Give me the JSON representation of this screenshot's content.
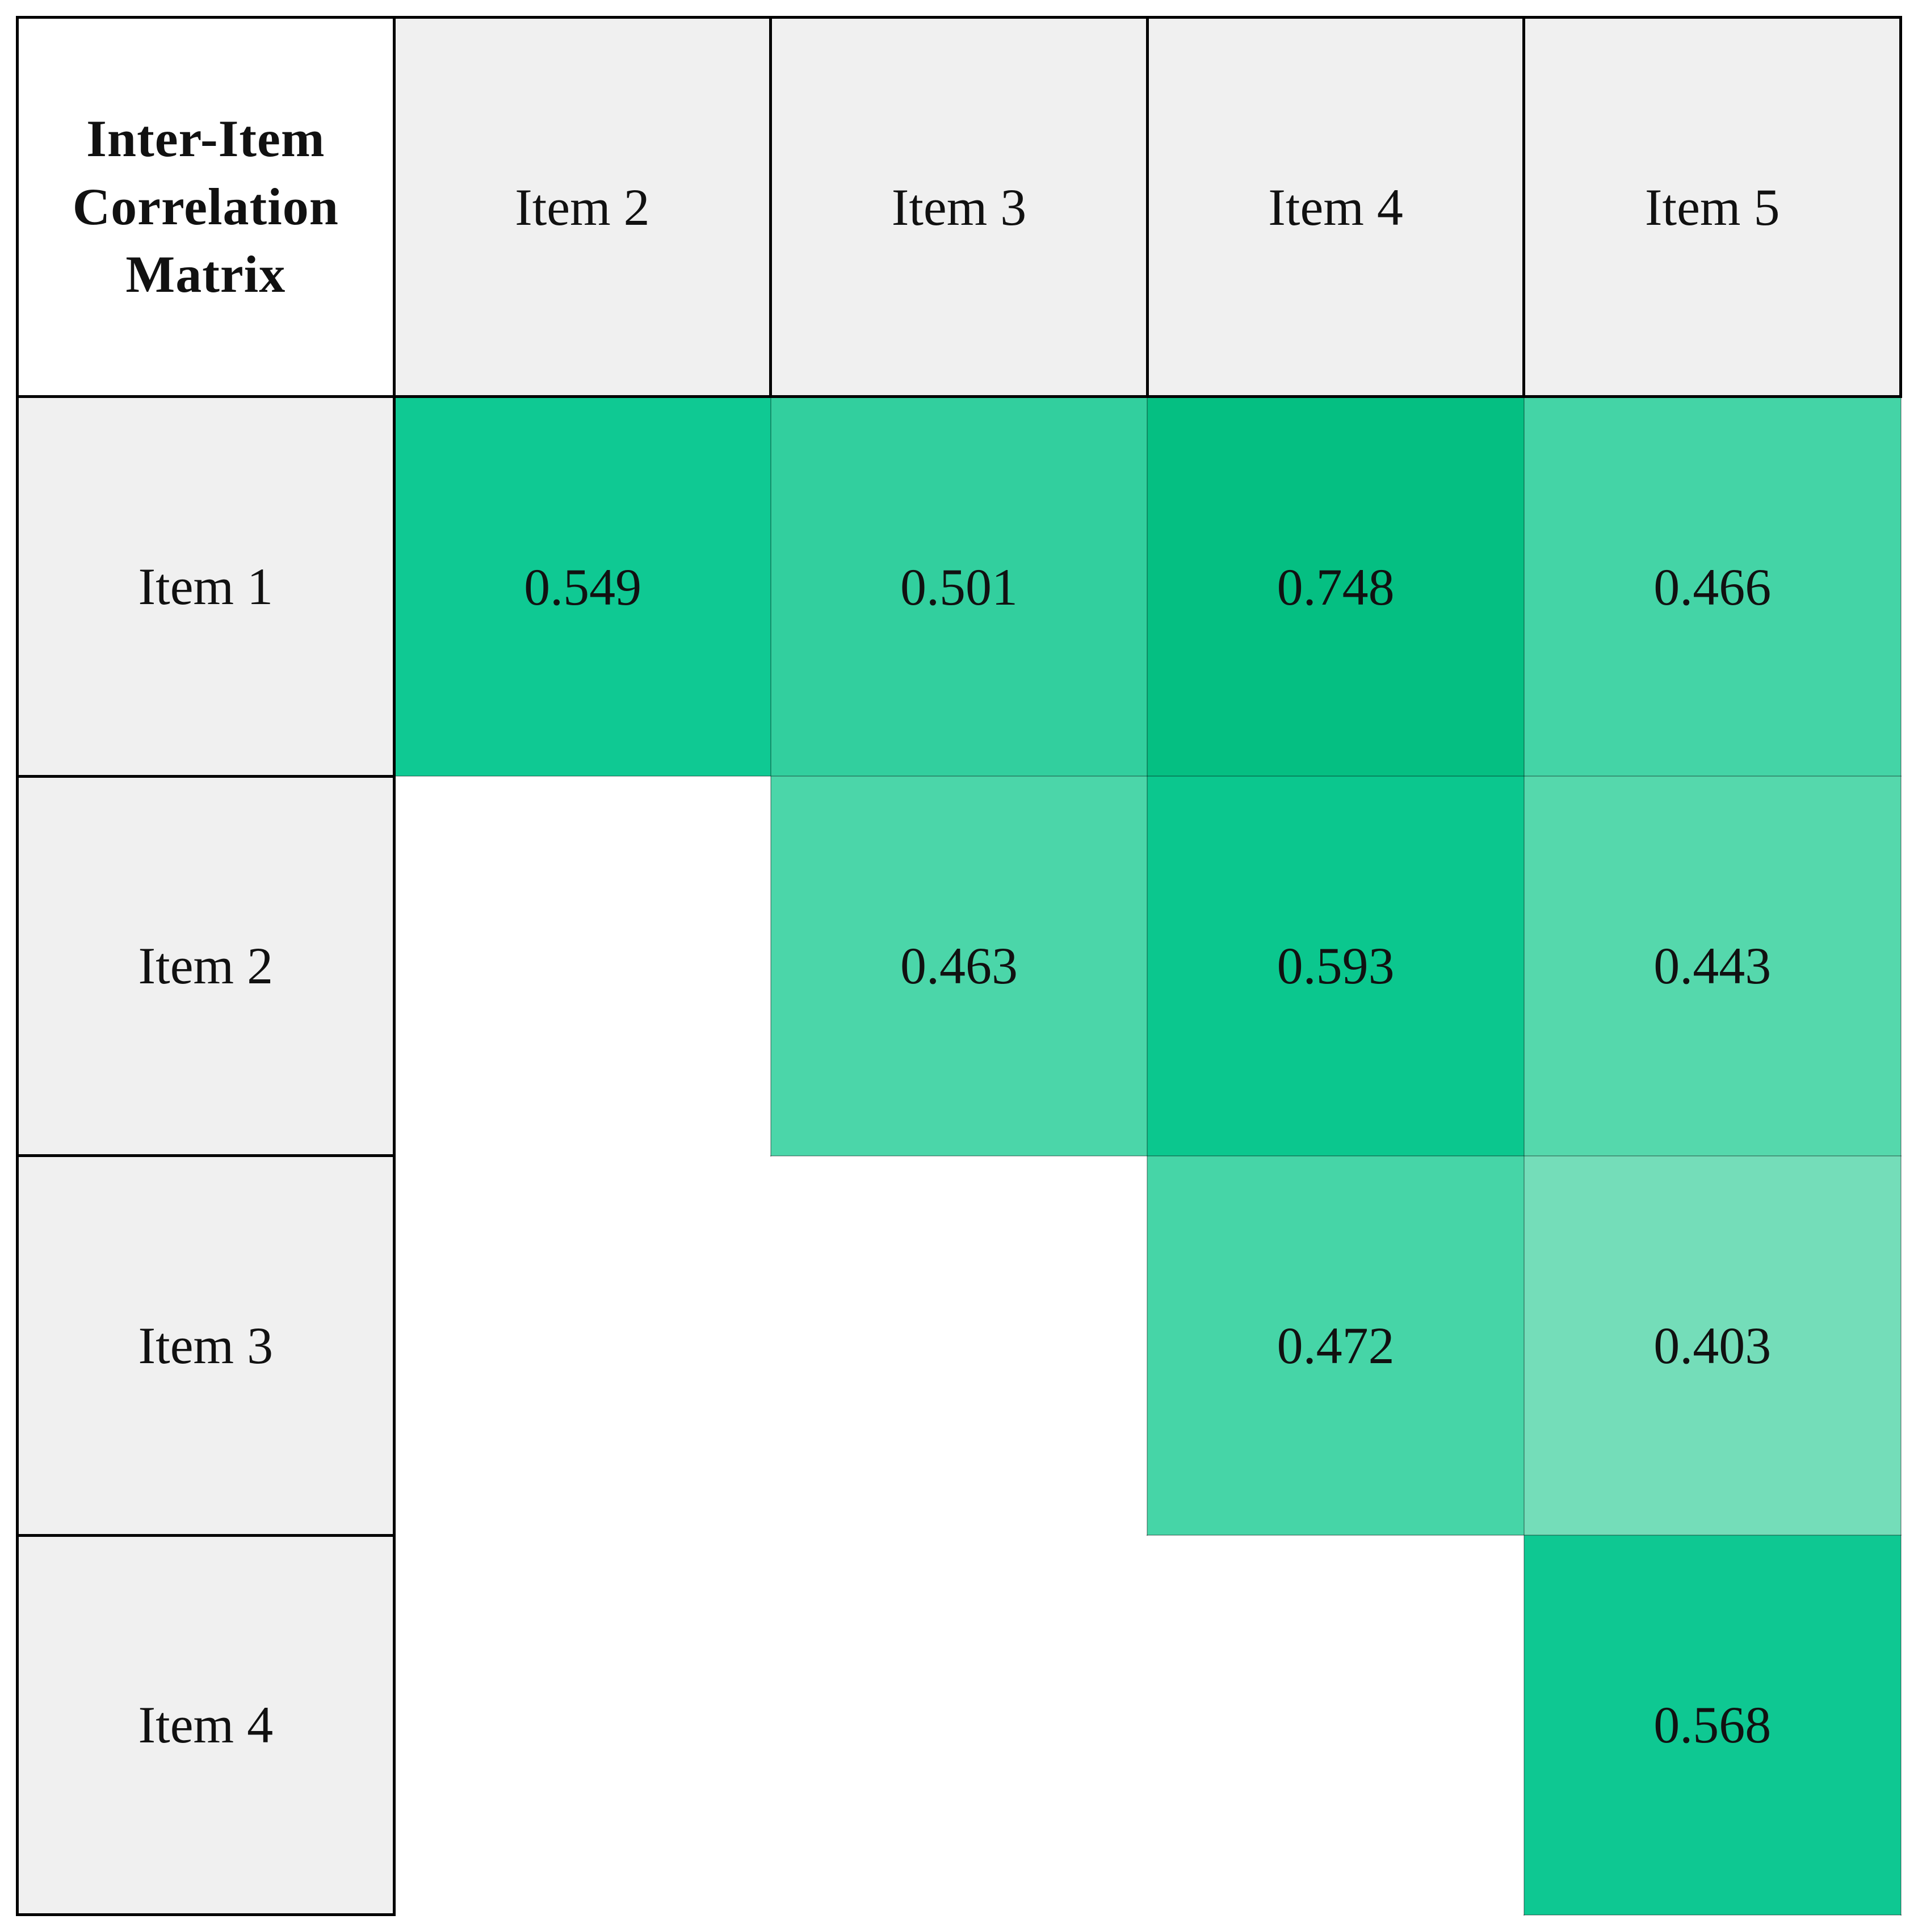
{
  "chart_data": {
    "type": "heatmap",
    "title": "Inter-Item Correlation Matrix",
    "x_labels": [
      "Item 2",
      "Item 3",
      "Item 4",
      "Item 5"
    ],
    "y_labels": [
      "Item 1",
      "Item 2",
      "Item 3",
      "Item 4"
    ],
    "values": [
      [
        0.549,
        0.501,
        0.748,
        0.466
      ],
      [
        null,
        0.463,
        0.593,
        0.443
      ],
      [
        null,
        null,
        0.472,
        0.403
      ],
      [
        null,
        null,
        null,
        0.568
      ]
    ],
    "value_decimals": 3,
    "cell_colors": [
      [
        "#0fc993",
        "#32cf9e",
        "#05bf82",
        "#44d4a6"
      ],
      [
        null,
        "#4bd6a9",
        "#0bc78e",
        "#55d8ac"
      ],
      [
        null,
        null,
        "#46d5a7",
        "#74ddb9"
      ],
      [
        null,
        null,
        null,
        "#0ec892"
      ]
    ],
    "colors": {
      "scale_min_color": "#74ddb9",
      "scale_max_color": "#05bf82",
      "header_background": "#f0f0f0",
      "corner_background": "#ffffff",
      "border_color": "#000000",
      "text_color": "#111111"
    },
    "layout": {
      "legend": "none",
      "grid": "borders-on-header-and-label-cells",
      "empty_lower_triangle": true
    }
  }
}
